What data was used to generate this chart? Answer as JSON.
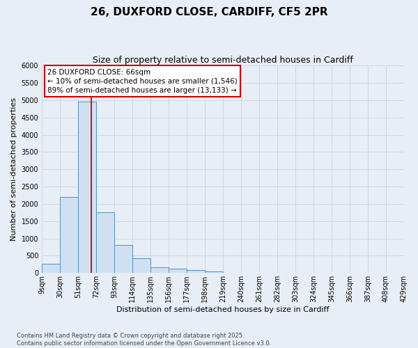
{
  "title": "26, DUXFORD CLOSE, CARDIFF, CF5 2PR",
  "subtitle": "Size of property relative to semi-detached houses in Cardiff",
  "xlabel": "Distribution of semi-detached houses by size in Cardiff",
  "ylabel": "Number of semi-detached properties",
  "footer1": "Contains HM Land Registry data © Crown copyright and database right 2025.",
  "footer2": "Contains public sector information licensed under the Open Government Licence v3.0.",
  "bin_labels": [
    "9sqm",
    "30sqm",
    "51sqm",
    "72sqm",
    "93sqm",
    "114sqm",
    "135sqm",
    "156sqm",
    "177sqm",
    "198sqm",
    "219sqm",
    "240sqm",
    "261sqm",
    "282sqm",
    "303sqm",
    "324sqm",
    "345sqm",
    "366sqm",
    "387sqm",
    "408sqm",
    "429sqm"
  ],
  "bar_values": [
    270,
    2200,
    4950,
    1750,
    820,
    430,
    175,
    120,
    80,
    55,
    10,
    0,
    0,
    0,
    0,
    0,
    0,
    0,
    0,
    0
  ],
  "bin_edges": [
    9,
    30,
    51,
    72,
    93,
    114,
    135,
    156,
    177,
    198,
    219,
    240,
    261,
    282,
    303,
    324,
    345,
    366,
    387,
    408,
    429
  ],
  "bar_color": "#d0e0f0",
  "bar_edge_color": "#5090c0",
  "property_sqm": 66,
  "red_line_color": "#cc0000",
  "annotation_line1": "26 DUXFORD CLOSE: 66sqm",
  "annotation_line2": "← 10% of semi-detached houses are smaller (1,546)",
  "annotation_line3": "89% of semi-detached houses are larger (13,133) →",
  "annotation_box_color": "#ffffff",
  "annotation_box_edge": "#cc0000",
  "ylim": [
    0,
    6000
  ],
  "yticks": [
    0,
    500,
    1000,
    1500,
    2000,
    2500,
    3000,
    3500,
    4000,
    4500,
    5000,
    5500,
    6000
  ],
  "grid_color": "#c8d4e0",
  "bg_color": "#e8eef5",
  "title_fontsize": 11,
  "subtitle_fontsize": 9,
  "axis_label_fontsize": 8,
  "tick_fontsize": 7,
  "footer_fontsize": 6,
  "annotation_fontsize": 7.5
}
